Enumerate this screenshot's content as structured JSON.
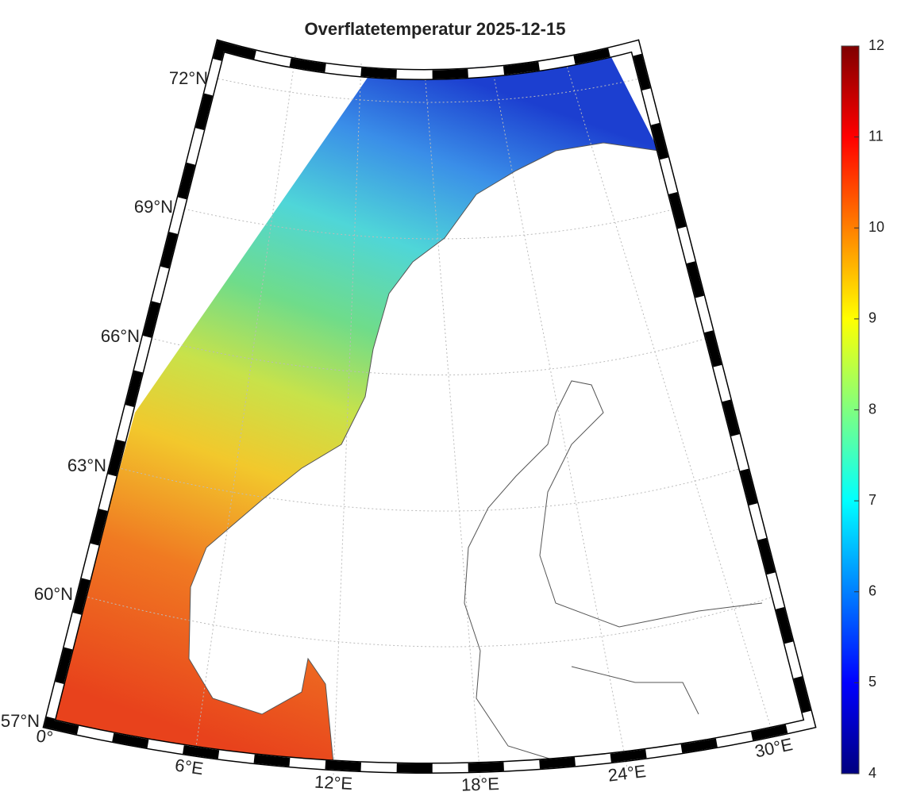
{
  "title": "Overflatetemperatur 2025-12-15",
  "colorbar": {
    "lim": [
      4,
      12
    ],
    "ticks": [
      4,
      5,
      6,
      7,
      8,
      9,
      10,
      11,
      12
    ]
  },
  "lat_labels": [
    "72°N",
    "69°N",
    "66°N",
    "63°N",
    "60°N",
    "57°N"
  ],
  "lon_labels": [
    "0°",
    "6°E",
    "12°E",
    "18°E",
    "24°E",
    "30°E"
  ]
}
